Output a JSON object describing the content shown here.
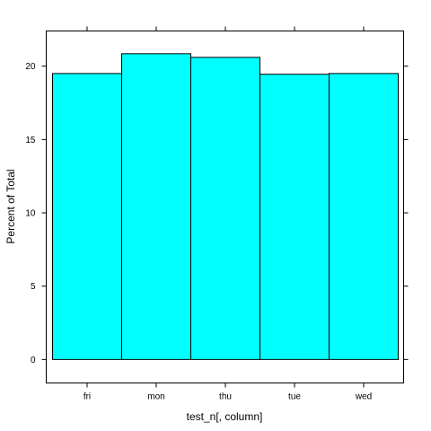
{
  "chart_data": {
    "type": "bar",
    "categories": [
      "fri",
      "mon",
      "thu",
      "tue",
      "wed"
    ],
    "values": [
      19.5,
      20.85,
      20.6,
      19.45,
      19.5
    ],
    "xlabel": "test_n[, column]",
    "ylabel": "Percent of Total",
    "ylim": [
      -1.6,
      22.4
    ],
    "yticks": [
      0,
      5,
      10,
      15,
      20
    ],
    "grid": false,
    "bar_color": "#00ffff",
    "bar_edge_color": "#000000"
  }
}
